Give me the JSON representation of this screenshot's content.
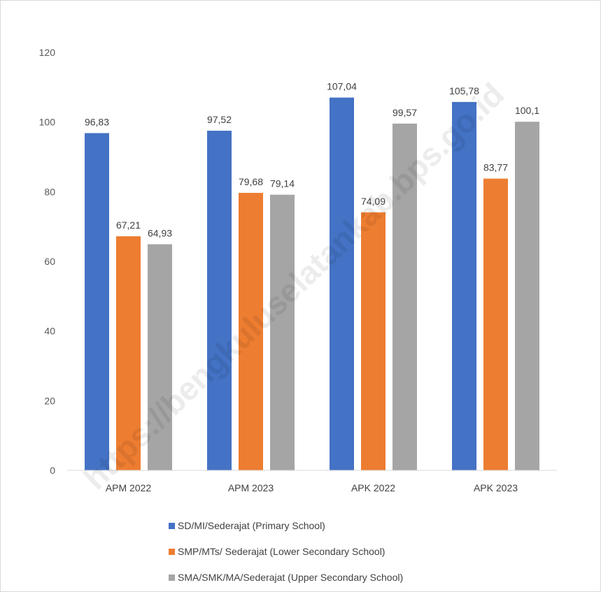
{
  "chart_data": {
    "type": "bar",
    "categories": [
      "APM 2022",
      "APM 2023",
      "APK 2022",
      "APK 2023"
    ],
    "series": [
      {
        "name": "SD/MI/Sederajat (Primary School)",
        "values": [
          96.83,
          97.52,
          107.04,
          105.78
        ],
        "labels": [
          "96,83",
          "97,52",
          "107,04",
          "105,78"
        ],
        "color": "#4472c4"
      },
      {
        "name": "SMP/MTs/ Sederajat (Lower Secondary School)",
        "values": [
          67.21,
          79.68,
          74.09,
          83.77
        ],
        "labels": [
          "67,21",
          "79,68",
          "74,09",
          "83,77"
        ],
        "color": "#ed7d31"
      },
      {
        "name": "SMA/SMK/MA/Sederajat (Upper Secondary School)",
        "values": [
          64.93,
          79.14,
          99.57,
          100.1
        ],
        "labels": [
          "64,93",
          "79,14",
          "99,57",
          "100,1"
        ],
        "color": "#a5a5a5"
      }
    ],
    "ylim": [
      0,
      120
    ],
    "yticks": [
      "0",
      "20",
      "40",
      "60",
      "80",
      "100",
      "120"
    ],
    "grid": false,
    "legend_position": "bottom"
  },
  "watermark": "https://bengkuluselatankab.bps.go.id"
}
